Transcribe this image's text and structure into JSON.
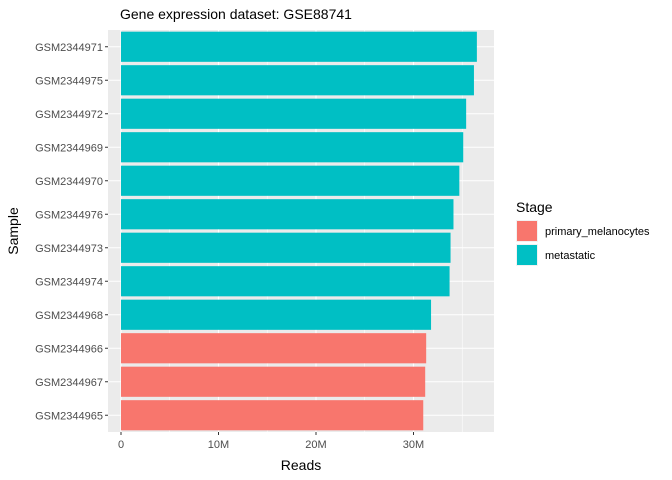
{
  "chart_data": {
    "type": "bar",
    "orientation": "horizontal",
    "title": "Gene expression dataset: GSE88741",
    "xlabel": "Reads",
    "ylabel": "Sample",
    "xlim": [
      0,
      38000000
    ],
    "xticks": [
      {
        "value": 0,
        "label": "0"
      },
      {
        "value": 10000000,
        "label": "10M"
      },
      {
        "value": 20000000,
        "label": "20M"
      },
      {
        "value": 30000000,
        "label": "30M"
      }
    ],
    "grid": true,
    "legend": {
      "title": "Stage",
      "position": "right",
      "entries": [
        {
          "key": "primary_melanocytes",
          "label": "primary_melanocytes",
          "color": "#F8766D"
        },
        {
          "key": "metastatic",
          "label": "metastatic",
          "color": "#00BFC4"
        }
      ]
    },
    "bars": [
      {
        "sample": "GSM2344971",
        "value": 36500000,
        "stage": "metastatic"
      },
      {
        "sample": "GSM2344975",
        "value": 36200000,
        "stage": "metastatic"
      },
      {
        "sample": "GSM2344972",
        "value": 35400000,
        "stage": "metastatic"
      },
      {
        "sample": "GSM2344969",
        "value": 35100000,
        "stage": "metastatic"
      },
      {
        "sample": "GSM2344970",
        "value": 34700000,
        "stage": "metastatic"
      },
      {
        "sample": "GSM2344976",
        "value": 34100000,
        "stage": "metastatic"
      },
      {
        "sample": "GSM2344973",
        "value": 33800000,
        "stage": "metastatic"
      },
      {
        "sample": "GSM2344974",
        "value": 33700000,
        "stage": "metastatic"
      },
      {
        "sample": "GSM2344968",
        "value": 31800000,
        "stage": "metastatic"
      },
      {
        "sample": "GSM2344966",
        "value": 31300000,
        "stage": "primary_melanocytes"
      },
      {
        "sample": "GSM2344967",
        "value": 31200000,
        "stage": "primary_melanocytes"
      },
      {
        "sample": "GSM2344965",
        "value": 31000000,
        "stage": "primary_melanocytes"
      }
    ]
  }
}
